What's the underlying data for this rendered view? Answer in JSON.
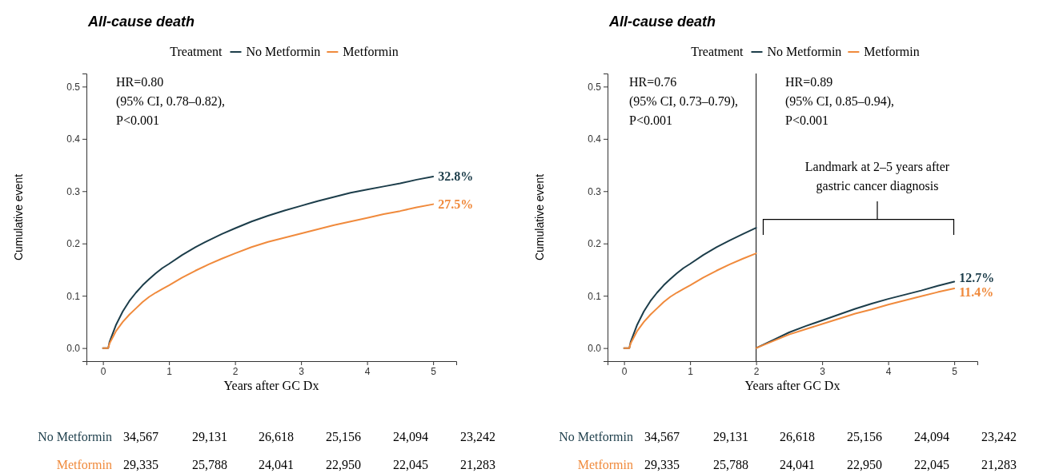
{
  "chart_data": [
    {
      "type": "line",
      "title": "All-cause death",
      "xlabel": "Years after GC Dx",
      "ylabel": "Cumulative event",
      "legend_title": "Treatment",
      "legend": "top",
      "xlim": [
        -0.25,
        5.35
      ],
      "ylim": [
        -0.025,
        0.525
      ],
      "xticks": [
        0,
        1,
        2,
        3,
        4,
        5
      ],
      "yticks": [
        {
          "value": 0,
          "label": "0.0"
        },
        0.1,
        0.2,
        0.3,
        0.4,
        0.5
      ],
      "grid": false,
      "x": [
        0,
        0.08,
        0.1,
        0.2,
        0.3,
        0.4,
        0.5,
        0.6,
        0.7,
        0.8,
        0.9,
        1,
        1.2,
        1.4,
        1.6,
        1.8,
        2,
        2.25,
        2.5,
        2.75,
        3,
        3.25,
        3.5,
        3.75,
        4,
        4.25,
        4.5,
        4.75,
        5
      ],
      "series": [
        {
          "name": "No Metformin",
          "color": "#1c3d4a",
          "values": [
            0,
            0,
            0.012,
            0.045,
            0.07,
            0.09,
            0.106,
            0.12,
            0.132,
            0.143,
            0.153,
            0.161,
            0.178,
            0.193,
            0.206,
            0.218,
            0.229,
            0.242,
            0.253,
            0.263,
            0.272,
            0.281,
            0.289,
            0.297,
            0.303,
            0.309,
            0.315,
            0.322,
            0.328
          ],
          "value_labels": [
            null,
            null,
            null,
            null,
            null,
            null,
            null,
            null,
            null,
            null,
            null,
            null,
            null,
            null,
            null,
            null,
            null,
            null,
            null,
            null,
            null,
            null,
            null,
            null,
            null,
            null,
            null,
            null,
            "32.8%"
          ]
        },
        {
          "name": "Metformin",
          "color": "#f08a3c",
          "values": [
            0,
            0,
            0.009,
            0.033,
            0.05,
            0.064,
            0.076,
            0.088,
            0.098,
            0.106,
            0.113,
            0.12,
            0.135,
            0.148,
            0.16,
            0.171,
            0.181,
            0.193,
            0.203,
            0.211,
            0.219,
            0.227,
            0.235,
            0.242,
            0.249,
            0.256,
            0.262,
            0.269,
            0.275
          ],
          "value_labels": [
            null,
            null,
            null,
            null,
            null,
            null,
            null,
            null,
            null,
            null,
            null,
            null,
            null,
            null,
            null,
            null,
            null,
            null,
            null,
            null,
            null,
            null,
            null,
            null,
            null,
            null,
            null,
            null,
            "27.5%"
          ]
        }
      ],
      "annotations": [
        "HR=0.80\n(95% CI, 0.78–0.82),\nP<0.001",
        "No Metformin",
        "34,567",
        "29,131",
        "26,618",
        "25,156",
        "24,094",
        "23,242",
        "Metformin",
        "29,335",
        "25,788",
        "24,041",
        "22,950",
        "22,045",
        "21,283"
      ]
    },
    {
      "type": "line",
      "title": "All-cause death",
      "xlabel": "Years after GC Dx",
      "ylabel": "Cumulative event",
      "legend_title": "Treatment",
      "legend": "top",
      "xlim": [
        -0.25,
        5.35
      ],
      "ylim": [
        -0.025,
        0.525
      ],
      "xticks": [
        0,
        1,
        2,
        3,
        4,
        5
      ],
      "yticks": [
        {
          "value": 0,
          "label": "0.0"
        },
        0.1,
        0.2,
        0.3,
        0.4,
        0.5
      ],
      "grid": false,
      "x": [
        0,
        0.08,
        0.1,
        0.2,
        0.3,
        0.4,
        0.5,
        0.6,
        0.7,
        0.8,
        0.9,
        1,
        1.2,
        1.4,
        1.6,
        1.8,
        2
      ],
      "series": [
        {
          "name": "No Metformin",
          "color": "#1c3d4a",
          "values": [
            0,
            0,
            0.012,
            0.045,
            0.07,
            0.09,
            0.106,
            0.12,
            0.132,
            0.143,
            0.153,
            0.161,
            0.178,
            0.193,
            0.206,
            0.218,
            0.23
          ]
        },
        {
          "name": "Metformin",
          "color": "#f08a3c",
          "values": [
            0,
            0,
            0.009,
            0.033,
            0.05,
            0.064,
            0.076,
            0.088,
            0.098,
            0.106,
            0.113,
            0.12,
            0.135,
            0.148,
            0.16,
            0.171,
            0.181
          ]
        },
        {
          "color": "#1c3d4a",
          "x": [
            2,
            2.25,
            2.5,
            2.75,
            3,
            3.25,
            3.5,
            3.75,
            4,
            4.25,
            4.5,
            4.75,
            5
          ],
          "values": [
            0,
            0.015,
            0.03,
            0.042,
            0.053,
            0.064,
            0.075,
            0.085,
            0.094,
            0.102,
            0.11,
            0.119,
            0.127
          ],
          "value_labels": [
            null,
            null,
            null,
            null,
            null,
            null,
            null,
            null,
            null,
            null,
            null,
            null,
            "12.7%"
          ]
        },
        {
          "color": "#f08a3c",
          "x": [
            2,
            2.25,
            2.5,
            2.75,
            3,
            3.25,
            3.5,
            3.75,
            4,
            4.25,
            4.5,
            4.75,
            5
          ],
          "values": [
            0,
            0.013,
            0.026,
            0.036,
            0.046,
            0.056,
            0.066,
            0.074,
            0.083,
            0.091,
            0.099,
            0.107,
            0.114
          ],
          "value_labels": [
            null,
            null,
            null,
            null,
            null,
            null,
            null,
            null,
            null,
            null,
            null,
            null,
            "11.4%"
          ]
        }
      ],
      "ref_lines": [
        {
          "axis": "x",
          "value": 2,
          "color": "#000000"
        }
      ],
      "annotations": [
        "HR=0.76\n(95% CI, 0.73–0.79),\nP<0.001",
        "HR=0.89\n(95% CI, 0.85–0.94),\nP<0.001",
        "Landmark at 2–5 years after\ngastric cancer diagnosis",
        "No Metformin",
        "34,567",
        "29,131",
        "26,618",
        "25,156",
        "24,094",
        "23,242",
        "Metformin",
        "29,335",
        "25,788",
        "24,041",
        "22,950",
        "22,045",
        "21,283"
      ]
    }
  ]
}
